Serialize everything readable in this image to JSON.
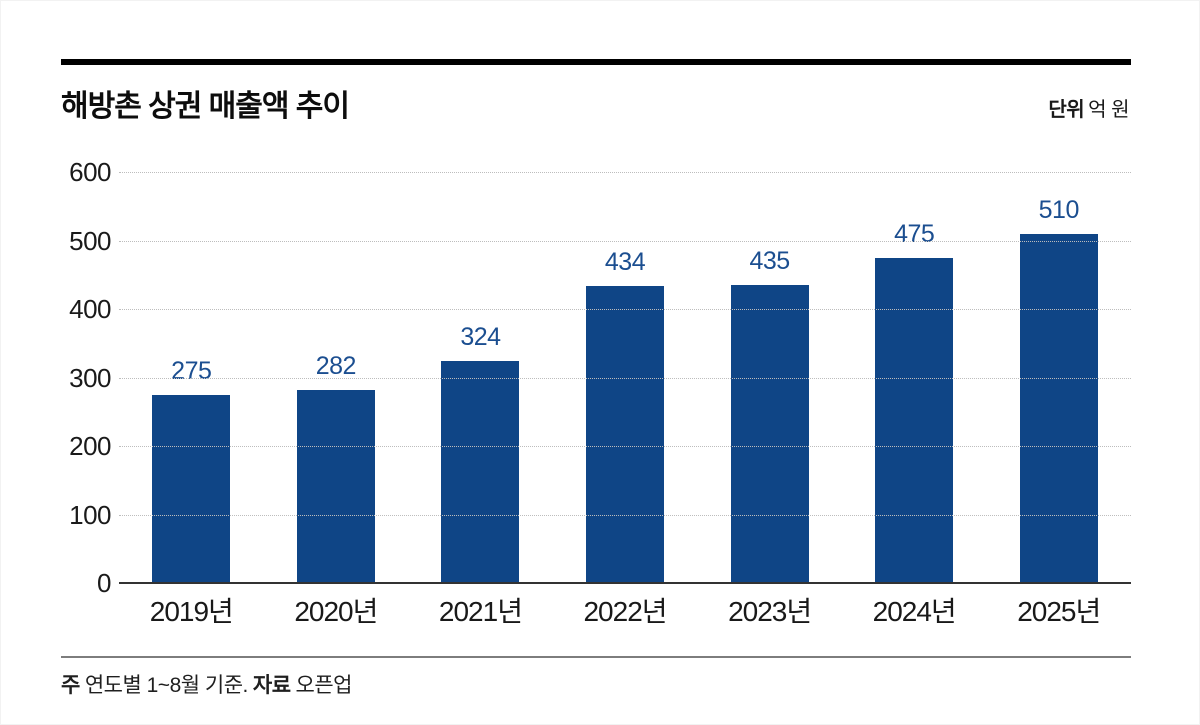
{
  "header": {
    "title": "해방촌 상권 매출액 추이",
    "unit_label": "단위",
    "unit_value": "억 원"
  },
  "chart_data": {
    "type": "bar",
    "title": "해방촌 상권 매출액 추이",
    "unit": "억 원",
    "categories": [
      "2019년",
      "2020년",
      "2021년",
      "2022년",
      "2023년",
      "2024년",
      "2025년"
    ],
    "values": [
      275,
      282,
      324,
      434,
      435,
      475,
      510
    ],
    "ylim": [
      0,
      600
    ],
    "yticks": [
      0,
      100,
      200,
      300,
      400,
      500,
      600
    ],
    "grid": "horizontal-dotted",
    "legend": "none",
    "bar_color": "#0f4586",
    "value_label_color": "#1b4e90"
  },
  "footer": {
    "note_label": "주",
    "note_text": "연도별 1~8월 기준.",
    "source_label": "자료",
    "source_text": "오픈업"
  }
}
